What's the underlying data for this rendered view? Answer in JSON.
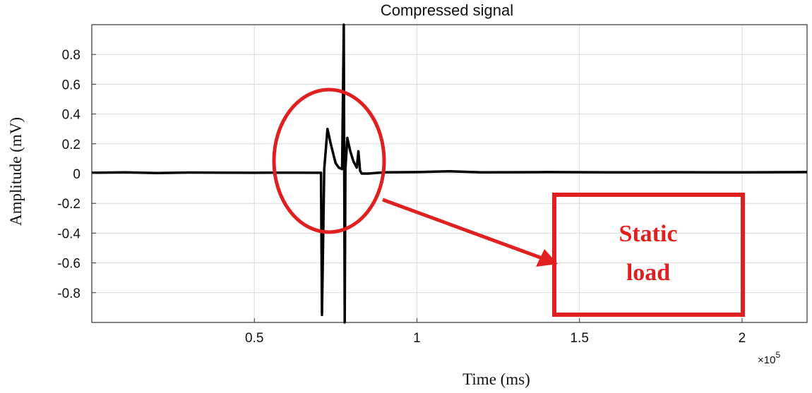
{
  "chart_data": {
    "type": "line",
    "title": "Compressed signal",
    "xlabel": "Time (ms)",
    "ylabel": "Amplitude (mV)",
    "x_multiplier_label": "×10",
    "x_multiplier_exponent": "5",
    "xlim": [
      0,
      2.2
    ],
    "ylim": [
      -1,
      1
    ],
    "xticks": [
      0.5,
      1,
      1.5,
      2
    ],
    "xtick_labels": [
      "0.5",
      "1",
      "1.5",
      "2"
    ],
    "yticks": [
      0.8,
      0.6,
      0.4,
      0.2,
      0,
      -0.2,
      -0.4,
      -0.6,
      -0.8
    ],
    "ytick_labels": [
      "0.8",
      "0.6",
      "0.4",
      "0.2",
      "0",
      "-0.2",
      "-0.4",
      "-0.6",
      "-0.8"
    ],
    "grid": true,
    "series": [
      {
        "color": "#000000",
        "x": [
          0,
          0.1,
          0.2,
          0.3,
          0.4,
          0.5,
          0.6,
          0.69,
          0.705,
          0.708,
          0.715,
          0.725,
          0.735,
          0.75,
          0.76,
          0.77,
          0.775,
          0.778,
          0.78,
          0.786,
          0.795,
          0.805,
          0.815,
          0.82,
          0.825,
          0.83,
          0.85,
          0.9,
          1.0,
          1.1,
          1.2,
          1.4,
          1.6,
          1.8,
          2.0,
          2.2
        ],
        "y": [
          0.005,
          0.008,
          0.004,
          0.007,
          0.006,
          0.005,
          0.006,
          0.005,
          0.005,
          -0.95,
          0.03,
          0.3,
          0.2,
          0.07,
          0.04,
          0.03,
          1.0,
          -1.0,
          0.03,
          0.24,
          0.15,
          0.08,
          0.04,
          0.15,
          0.02,
          0.0,
          0.0,
          0.008,
          0.01,
          0.015,
          0.008,
          0.01,
          0.008,
          0.009,
          0.008,
          0.01
        ]
      }
    ],
    "annotations": {
      "ellipse_color": "#e02020",
      "box_color": "#e02020",
      "arrow_color": "#e02020",
      "box_text": [
        "Static",
        "load"
      ]
    }
  }
}
